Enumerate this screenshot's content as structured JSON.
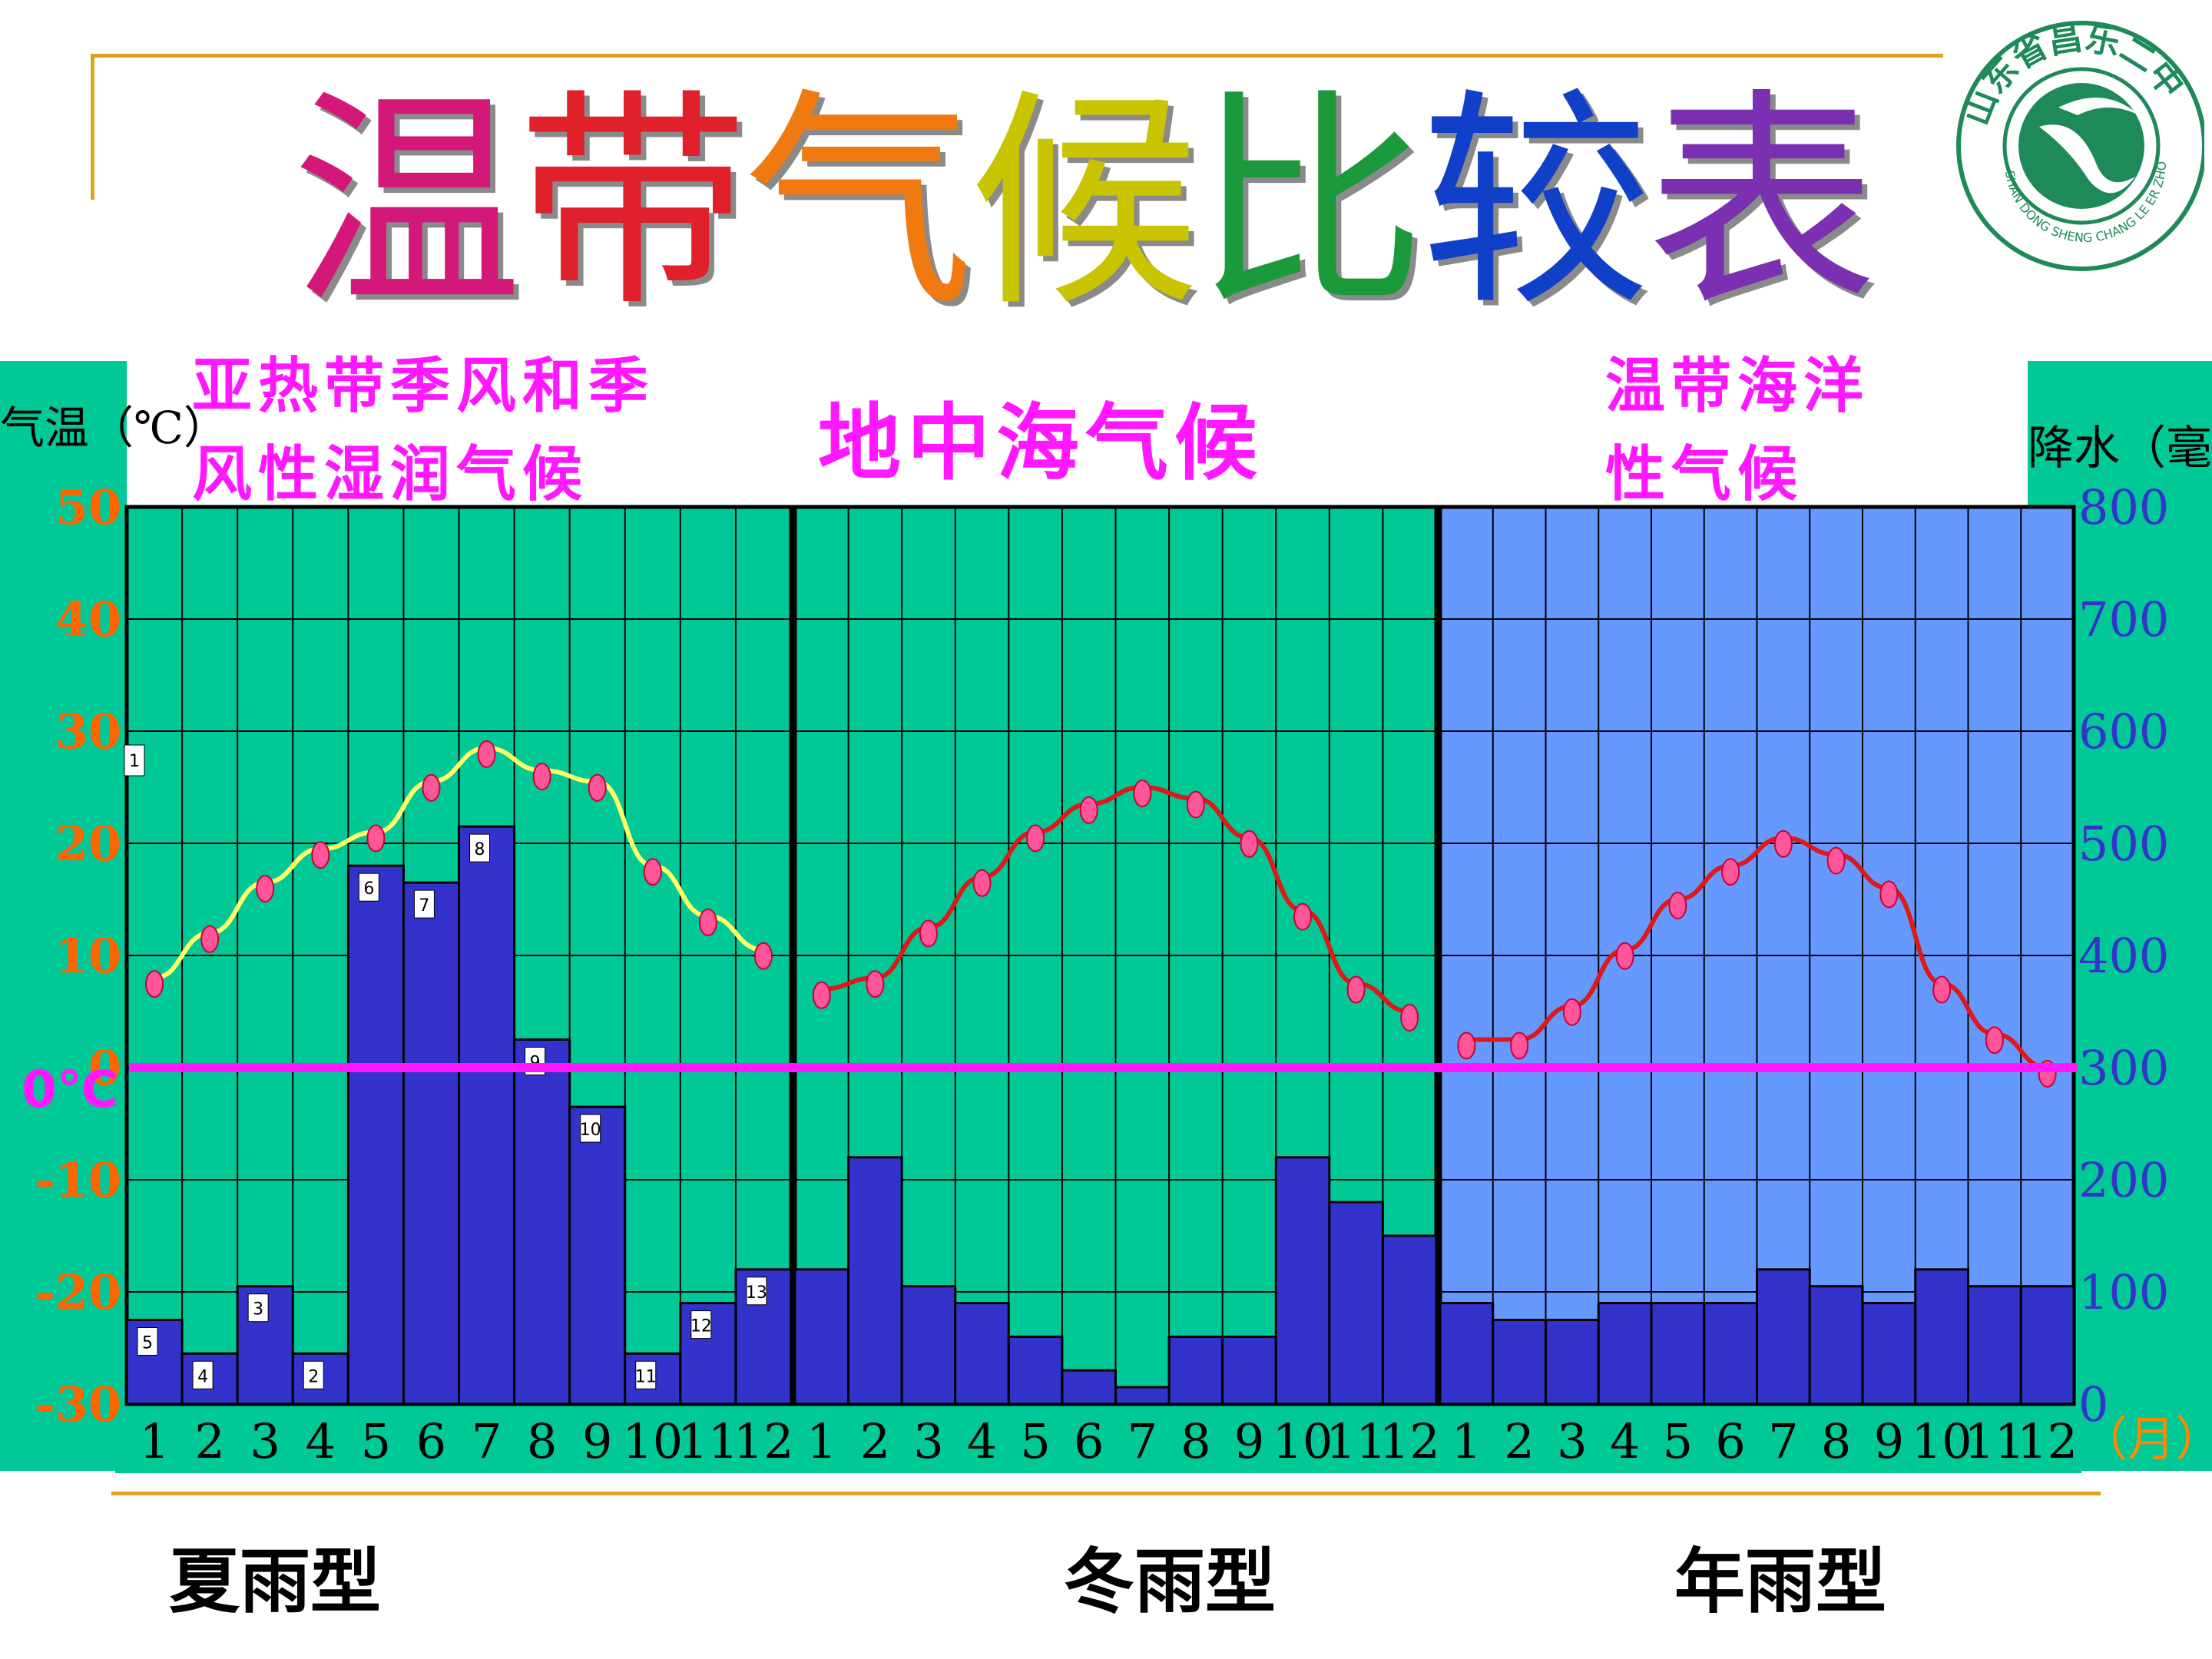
{
  "page": {
    "title_chars": [
      {
        "char": "温",
        "color": "#d4187a"
      },
      {
        "char": "带",
        "color": "#e0202a"
      },
      {
        "char": "气",
        "color": "#f07a10"
      },
      {
        "char": "候",
        "color": "#c9c400"
      },
      {
        "char": "比",
        "color": "#1a9a3a"
      },
      {
        "char": "较",
        "color": "#1040c8"
      },
      {
        "char": "表",
        "color": "#7a30b0"
      }
    ],
    "logo": {
      "text": "山东省昌乐二中",
      "subtext": "SHAN DONG SHENG CHANG LE ER ZHONG",
      "color": "#1e8a5a"
    },
    "left_axis_label": "气温（℃）",
    "right_axis_label": "降水（毫米）",
    "zero_label": "0℃",
    "panels": [
      {
        "title_lines": [
          "亚热带季风和季",
          "风性湿润气候"
        ],
        "caption": "夏雨型"
      },
      {
        "title_lines": [
          "地中海气候"
        ],
        "caption": "冬雨型"
      },
      {
        "title_lines": [
          "温带海洋",
          "性气候"
        ],
        "caption": "年雨型"
      }
    ]
  },
  "chart_data": [
    {
      "type": "bar+line",
      "title": "亚热带季风和季风性湿润气候",
      "caption": "夏雨型",
      "background": "#00c896",
      "line_color": "#ffff66",
      "categories": [
        "1",
        "2",
        "3",
        "4",
        "5",
        "6",
        "7",
        "8",
        "9",
        "10",
        "11",
        "12"
      ],
      "temperature": [
        8,
        12,
        16.5,
        19.5,
        21,
        25.5,
        28.5,
        26.5,
        25.5,
        18,
        13.5,
        10.5
      ],
      "precipitation": [
        75,
        45,
        105,
        45,
        480,
        465,
        515,
        325,
        265,
        45,
        90,
        120
      ],
      "bar_markers": [
        "5",
        "4",
        "3",
        "2",
        "6",
        "7",
        "8",
        "9",
        "10",
        "11",
        "12",
        "13"
      ],
      "point_markers": [
        "1"
      ],
      "yleft_ticks": [
        "50",
        "40",
        "30",
        "20",
        "10",
        "0",
        "-10",
        "-20",
        "-30"
      ],
      "yleft_lim": [
        -30,
        50
      ],
      "yright_lim": [
        0,
        800
      ]
    },
    {
      "type": "bar+line",
      "title": "地中海气候",
      "caption": "冬雨型",
      "background": "#00c896",
      "line_color": "#e01818",
      "categories": [
        "1",
        "2",
        "3",
        "4",
        "5",
        "6",
        "7",
        "8",
        "9",
        "10",
        "11",
        "12"
      ],
      "temperature": [
        7,
        8,
        12.5,
        17,
        21,
        23.5,
        25,
        24,
        20.5,
        14,
        7.5,
        5
      ],
      "precipitation": [
        120,
        220,
        105,
        90,
        60,
        30,
        15,
        60,
        60,
        220,
        180,
        150
      ],
      "yright_lim": [
        0,
        800
      ]
    },
    {
      "type": "bar+line",
      "title": "温带海洋性气候",
      "caption": "年雨型",
      "background": "#6699ff",
      "line_color": "#e01818",
      "categories": [
        "1",
        "2",
        "3",
        "4",
        "5",
        "6",
        "7",
        "8",
        "9",
        "10",
        "11",
        "12"
      ],
      "temperature": [
        2.5,
        2.5,
        5.5,
        10.5,
        15,
        18,
        20.5,
        19,
        16,
        7.5,
        3,
        0
      ],
      "precipitation": [
        90,
        75,
        75,
        90,
        90,
        90,
        120,
        105,
        90,
        120,
        105,
        105
      ],
      "month_unit": "（月）",
      "yright_ticks": [
        "800",
        "700",
        "600",
        "500",
        "400",
        "300",
        "200",
        "100",
        "0"
      ],
      "yright_lim": [
        0,
        800
      ]
    }
  ]
}
